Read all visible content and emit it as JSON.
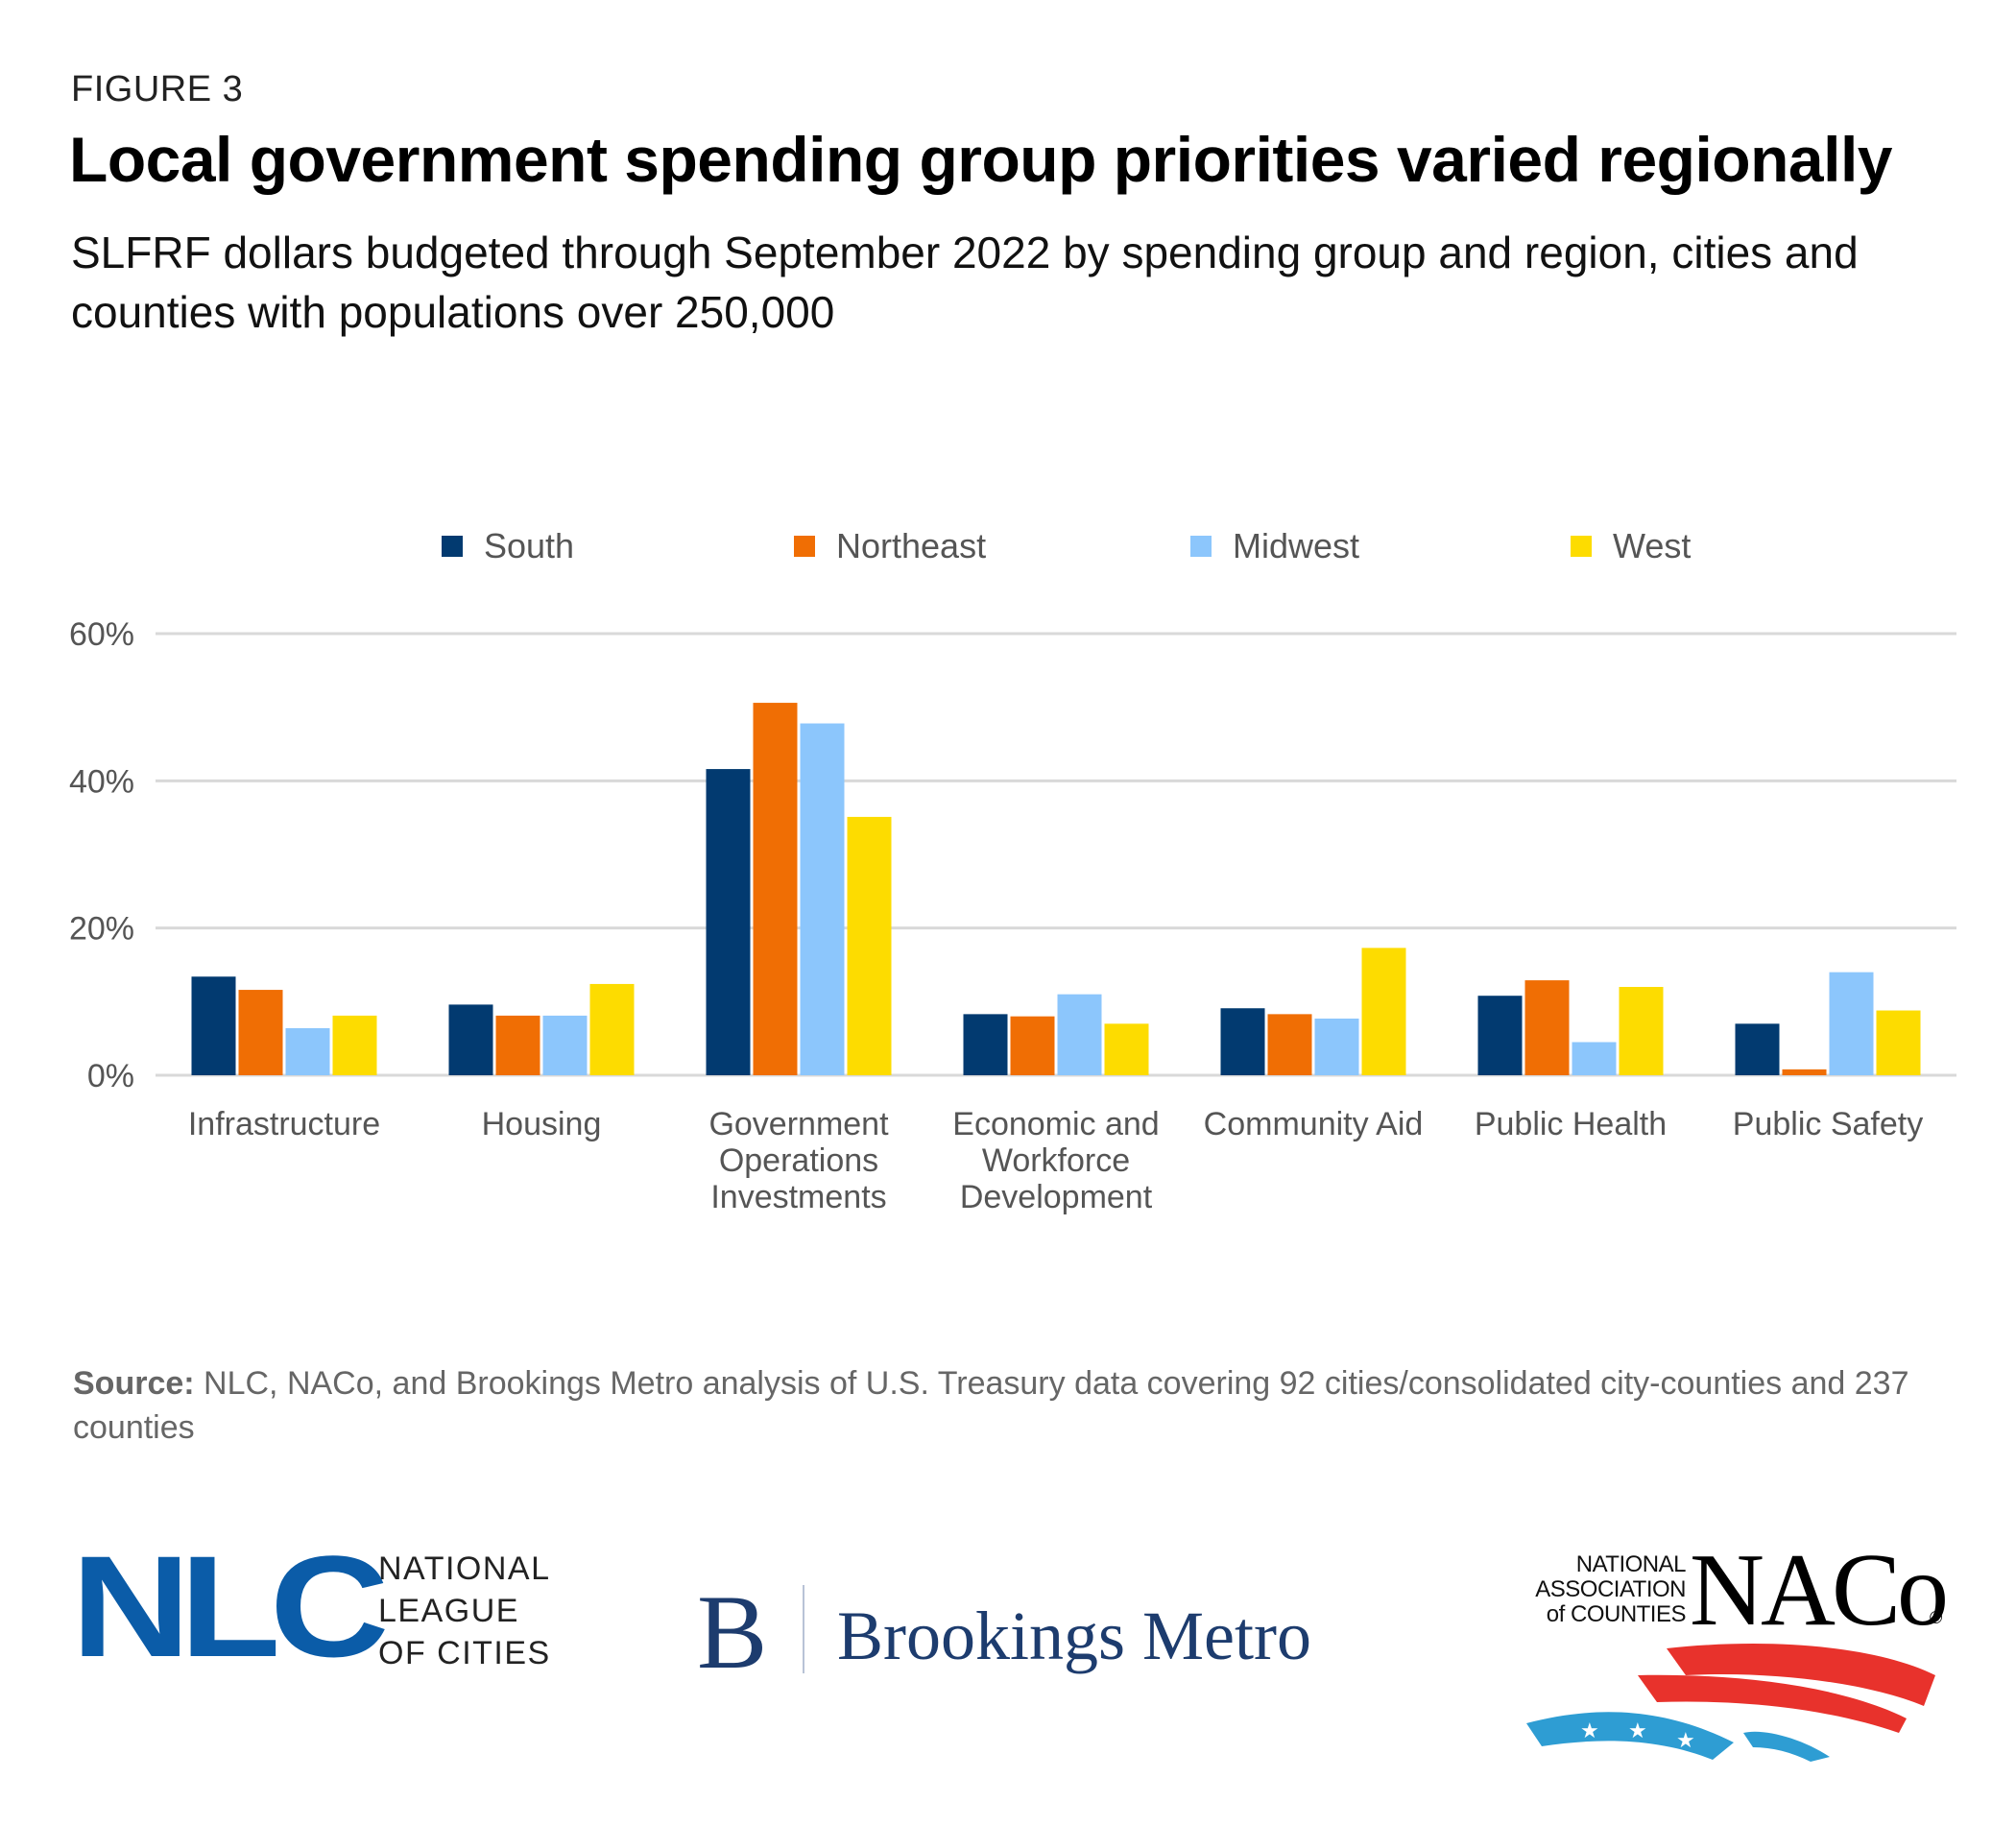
{
  "figure_label": "FIGURE 3",
  "title": "Local government spending group priorities varied regionally",
  "subtitle": "SLFRF dollars budgeted through September 2022 by spending group and region, cities and counties with populations over 250,000",
  "source": {
    "label": "Source:",
    "text": " NLC, NACo, and Brookings Metro analysis of U.S. Treasury data covering 92 cities/consolidated city-counties and 237 counties"
  },
  "logos": {
    "nlc": {
      "mark": "NLC",
      "lines": [
        "NATIONAL",
        "LEAGUE",
        "OF CITIES"
      ],
      "color": "#0b5ca8"
    },
    "brookings": {
      "mark": "B",
      "text": "Brookings Metro",
      "color": "#1d3c6e"
    },
    "naco": {
      "small_lines": [
        "NATIONAL",
        "ASSOCIATION",
        "of COUNTIES"
      ],
      "mark": "NACo",
      "registered": "®",
      "red": "#e8322c",
      "blue": "#2e9dd3"
    }
  },
  "chart_data": {
    "type": "bar",
    "title": "Local government spending group priorities varied regionally",
    "xlabel": "",
    "ylabel": "",
    "ylim": [
      0,
      60
    ],
    "yticks": [
      0,
      20,
      40,
      60
    ],
    "ytick_labels": [
      "0%",
      "20%",
      "40%",
      "60%"
    ],
    "grid": true,
    "legend_position": "top",
    "categories": [
      [
        "Infrastructure"
      ],
      [
        "Housing"
      ],
      [
        "Government",
        "Operations",
        "Investments"
      ],
      [
        "Economic and",
        "Workforce",
        "Development"
      ],
      [
        "Community Aid"
      ],
      [
        "Public Health"
      ],
      [
        "Public Safety"
      ]
    ],
    "series": [
      {
        "name": "South",
        "color": "#023a70",
        "values": [
          13.4,
          9.6,
          41.6,
          8.3,
          9.1,
          10.8,
          7.0
        ]
      },
      {
        "name": "Northeast",
        "color": "#f06e04",
        "values": [
          11.6,
          8.1,
          50.6,
          8.0,
          8.3,
          12.9,
          0.8
        ]
      },
      {
        "name": "Midwest",
        "color": "#8cc6fc",
        "values": [
          6.4,
          8.1,
          47.8,
          11.0,
          7.7,
          4.5,
          14.0
        ]
      },
      {
        "name": "West",
        "color": "#fddc00",
        "values": [
          8.1,
          12.4,
          35.1,
          7.0,
          17.3,
          12.0,
          8.8
        ]
      }
    ]
  }
}
